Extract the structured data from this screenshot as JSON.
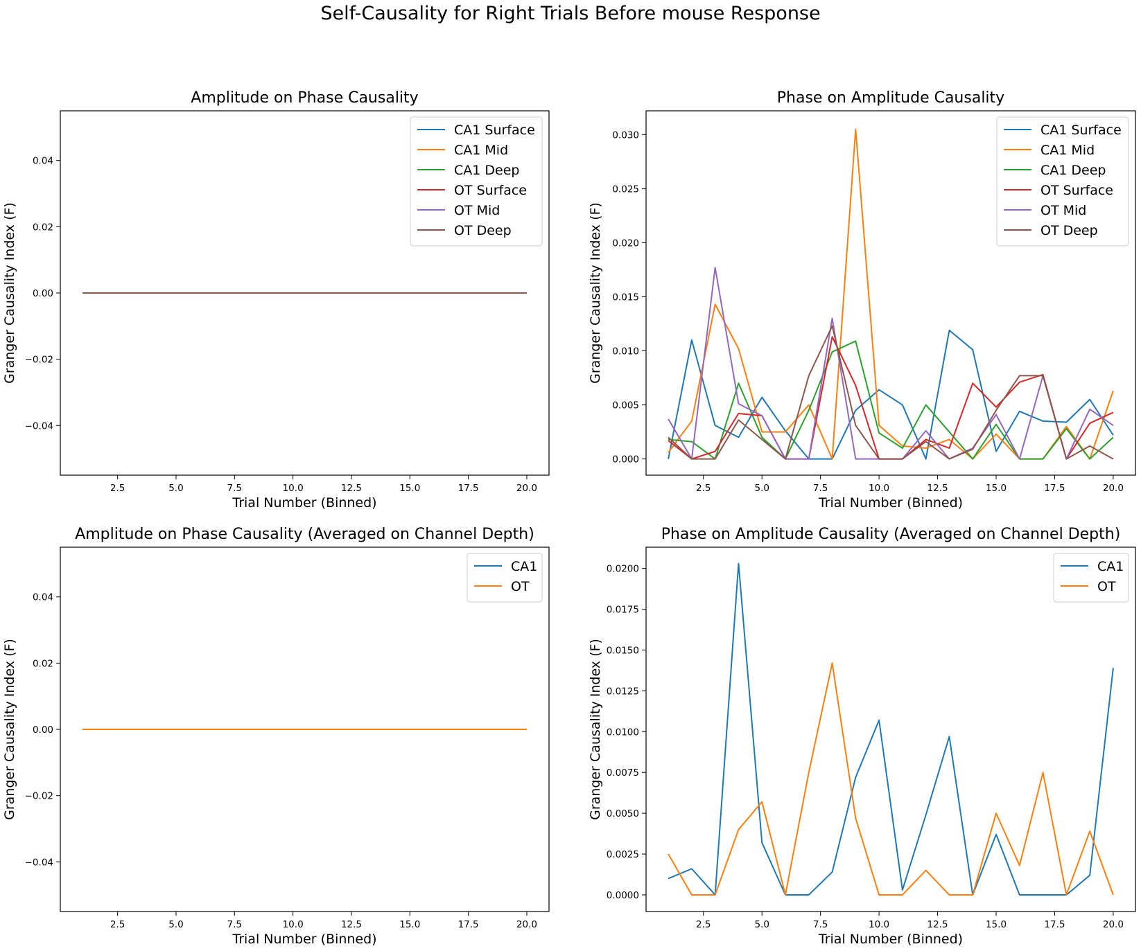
{
  "suptitle": "Self-Causality for Right Trials Before mouse Response",
  "colors": {
    "blue": "#1f77b4",
    "orange": "#ff7f0e",
    "green": "#2ca02c",
    "red": "#d62728",
    "purple": "#9467bd",
    "brown": "#8c564b"
  },
  "chart_data": [
    {
      "type": "line",
      "title": "Amplitude on Phase Causality",
      "xlabel": "Trial Number (Binned)",
      "ylabel": "Granger Causality Index (F)",
      "xlim": [
        0.05,
        20.95
      ],
      "ylim": [
        -0.055,
        0.055
      ],
      "xticks": [
        2.5,
        5.0,
        7.5,
        10.0,
        12.5,
        15.0,
        17.5,
        20.0
      ],
      "yticks": [
        -0.04,
        -0.02,
        0.0,
        0.02,
        0.04
      ],
      "ytick_decimals": 2,
      "legend": "top-right",
      "x": [
        1,
        2,
        3,
        4,
        5,
        6,
        7,
        8,
        9,
        10,
        11,
        12,
        13,
        14,
        15,
        16,
        17,
        18,
        19,
        20
      ],
      "series": [
        {
          "name": "CA1 Surface",
          "color": "#1f77b4",
          "values": [
            0,
            0,
            0,
            0,
            0,
            0,
            0,
            0,
            0,
            0,
            0,
            0,
            0,
            0,
            0,
            0,
            0,
            0,
            0,
            0
          ]
        },
        {
          "name": "CA1 Mid",
          "color": "#ff7f0e",
          "values": [
            0,
            0,
            0,
            0,
            0,
            0,
            0,
            0,
            0,
            0,
            0,
            0,
            0,
            0,
            0,
            0,
            0,
            0,
            0,
            0
          ]
        },
        {
          "name": "CA1 Deep",
          "color": "#2ca02c",
          "values": [
            0,
            0,
            0,
            0,
            0,
            0,
            0,
            0,
            0,
            0,
            0,
            0,
            0,
            0,
            0,
            0,
            0,
            0,
            0,
            0
          ]
        },
        {
          "name": "OT Surface",
          "color": "#d62728",
          "values": [
            0,
            0,
            0,
            0,
            0,
            0,
            0,
            0,
            0,
            0,
            0,
            0,
            0,
            0,
            0,
            0,
            0,
            0,
            0,
            0
          ]
        },
        {
          "name": "OT Mid",
          "color": "#9467bd",
          "values": [
            0,
            0,
            0,
            0,
            0,
            0,
            0,
            0,
            0,
            0,
            0,
            0,
            0,
            0,
            0,
            0,
            0,
            0,
            0,
            0
          ]
        },
        {
          "name": "OT Deep",
          "color": "#8c564b",
          "values": [
            0,
            0,
            0,
            0,
            0,
            0,
            0,
            0,
            0,
            0,
            0,
            0,
            0,
            0,
            0,
            0,
            0,
            0,
            0,
            0
          ]
        }
      ]
    },
    {
      "type": "line",
      "title": "Phase on Amplitude Causality",
      "xlabel": "Trial Number (Binned)",
      "ylabel": "Granger Causality Index (F)",
      "xlim": [
        0.05,
        20.95
      ],
      "ylim": [
        -0.0015,
        0.0322
      ],
      "xticks": [
        2.5,
        5.0,
        7.5,
        10.0,
        12.5,
        15.0,
        17.5,
        20.0
      ],
      "yticks": [
        0.0,
        0.005,
        0.01,
        0.015,
        0.02,
        0.025,
        0.03
      ],
      "ytick_decimals": 3,
      "legend": "top-right",
      "x": [
        1,
        2,
        3,
        4,
        5,
        6,
        7,
        8,
        9,
        10,
        11,
        12,
        13,
        14,
        15,
        16,
        17,
        18,
        19,
        20
      ],
      "series": [
        {
          "name": "CA1 Surface",
          "color": "#1f77b4",
          "values": [
            0.0,
            0.011,
            0.0031,
            0.002,
            0.0057,
            0.0026,
            0.0,
            0.0,
            0.0045,
            0.0064,
            0.005,
            0.0,
            0.0119,
            0.0101,
            0.0007,
            0.0044,
            0.0035,
            0.0034,
            0.0055,
            0.0022
          ]
        },
        {
          "name": "CA1 Mid",
          "color": "#ff7f0e",
          "values": [
            0.0006,
            0.0035,
            0.0143,
            0.0102,
            0.0025,
            0.0025,
            0.005,
            0.0,
            0.0305,
            0.0031,
            0.0012,
            0.001,
            0.0018,
            0.0,
            0.0023,
            0.0,
            0.0,
            0.003,
            0.0,
            0.0063
          ]
        },
        {
          "name": "CA1 Deep",
          "color": "#2ca02c",
          "values": [
            0.0018,
            0.0016,
            0.0,
            0.007,
            0.002,
            0.0,
            0.0045,
            0.0099,
            0.0109,
            0.0024,
            0.001,
            0.005,
            0.0025,
            0.0,
            0.0032,
            0.0,
            0.0,
            0.0028,
            0.0,
            0.002
          ]
        },
        {
          "name": "OT Surface",
          "color": "#d62728",
          "values": [
            0.0017,
            0.0,
            0.0007,
            0.0042,
            0.004,
            0.0,
            0.0,
            0.0113,
            0.0068,
            0.0,
            0.0,
            0.0018,
            0.001,
            0.007,
            0.0048,
            0.0071,
            0.0078,
            0.0,
            0.0033,
            0.0043
          ]
        },
        {
          "name": "OT Mid",
          "color": "#9467bd",
          "values": [
            0.0037,
            0.0,
            0.0177,
            0.0051,
            0.004,
            0.0,
            0.0,
            0.013,
            0.0,
            0.0,
            0.0,
            0.0026,
            0.0,
            0.001,
            0.0041,
            0.0,
            0.0077,
            0.0,
            0.0046,
            0.0031
          ]
        },
        {
          "name": "OT Deep",
          "color": "#8c564b",
          "values": [
            0.002,
            0.0,
            0.0,
            0.0036,
            0.0018,
            0.0,
            0.0077,
            0.0123,
            0.0031,
            0.0,
            0.0,
            0.0016,
            0.0,
            0.0009,
            0.0045,
            0.0077,
            0.0077,
            0.0,
            0.0012,
            0.0
          ]
        }
      ]
    },
    {
      "type": "line",
      "title": "Amplitude on Phase Causality (Averaged on Channel Depth)",
      "xlabel": "Trial Number (Binned)",
      "ylabel": "Granger Causality Index (F)",
      "xlim": [
        0.05,
        20.95
      ],
      "ylim": [
        -0.055,
        0.055
      ],
      "xticks": [
        2.5,
        5.0,
        7.5,
        10.0,
        12.5,
        15.0,
        17.5,
        20.0
      ],
      "yticks": [
        -0.04,
        -0.02,
        0.0,
        0.02,
        0.04
      ],
      "ytick_decimals": 2,
      "legend": "top-right",
      "x": [
        1,
        2,
        3,
        4,
        5,
        6,
        7,
        8,
        9,
        10,
        11,
        12,
        13,
        14,
        15,
        16,
        17,
        18,
        19,
        20
      ],
      "series": [
        {
          "name": "CA1",
          "color": "#1f77b4",
          "values": [
            0,
            0,
            0,
            0,
            0,
            0,
            0,
            0,
            0,
            0,
            0,
            0,
            0,
            0,
            0,
            0,
            0,
            0,
            0,
            0
          ]
        },
        {
          "name": "OT",
          "color": "#ff7f0e",
          "values": [
            0,
            0,
            0,
            0,
            0,
            0,
            0,
            0,
            0,
            0,
            0,
            0,
            0,
            0,
            0,
            0,
            0,
            0,
            0,
            0
          ]
        }
      ]
    },
    {
      "type": "line",
      "title": "Phase on Amplitude Causality (Averaged on Channel Depth)",
      "xlabel": "Trial Number (Binned)",
      "ylabel": "Granger Causality Index (F)",
      "xlim": [
        0.05,
        20.95
      ],
      "ylim": [
        -0.00102,
        0.0213
      ],
      "xticks": [
        2.5,
        5.0,
        7.5,
        10.0,
        12.5,
        15.0,
        17.5,
        20.0
      ],
      "yticks": [
        0.0,
        0.0025,
        0.005,
        0.0075,
        0.01,
        0.0125,
        0.015,
        0.0175,
        0.02
      ],
      "ytick_decimals": 4,
      "legend": "top-right",
      "x": [
        1,
        2,
        3,
        4,
        5,
        6,
        7,
        8,
        9,
        10,
        11,
        12,
        13,
        14,
        15,
        16,
        17,
        18,
        19,
        20
      ],
      "series": [
        {
          "name": "CA1",
          "color": "#1f77b4",
          "values": [
            0.001,
            0.0016,
            0.0,
            0.0203,
            0.0032,
            0.0,
            0.0,
            0.0014,
            0.0072,
            0.0107,
            0.0003,
            0.0049,
            0.0097,
            0.0,
            0.0037,
            0.0,
            0.0,
            0.0,
            0.0012,
            0.0139
          ]
        },
        {
          "name": "OT",
          "color": "#ff7f0e",
          "values": [
            0.0025,
            0.0,
            0.0,
            0.004,
            0.0057,
            0.0,
            0.0075,
            0.0142,
            0.0047,
            0.0,
            0.0,
            0.0015,
            0.0,
            0.0,
            0.005,
            0.0018,
            0.0075,
            0.0,
            0.0039,
            0.0
          ]
        }
      ]
    }
  ]
}
